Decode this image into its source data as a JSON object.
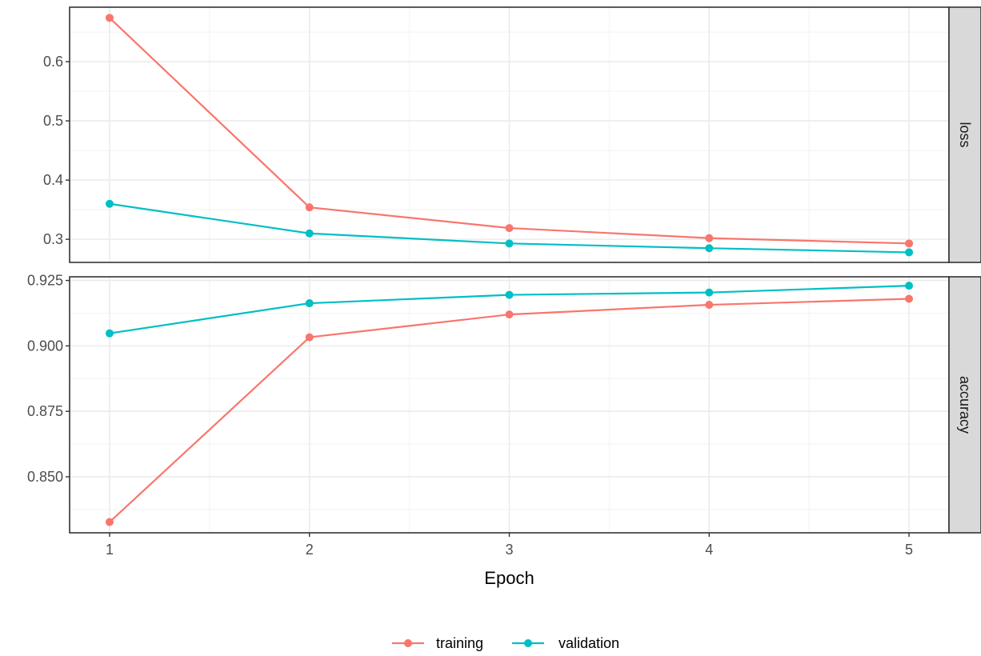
{
  "chart_data": {
    "type": "line",
    "xlabel": "Epoch",
    "x": [
      1,
      2,
      3,
      4,
      5
    ],
    "x_ticks": [
      "1",
      "2",
      "3",
      "4",
      "5"
    ],
    "xlim": [
      0.8,
      5.2
    ],
    "grid": true,
    "legend_position": "bottom",
    "legend": [
      {
        "name": "training",
        "color": "#F8766D"
      },
      {
        "name": "validation",
        "color": "#00BFC4"
      }
    ],
    "panels": [
      {
        "strip": "loss",
        "ylim": [
          0.261,
          0.692
        ],
        "y_ticks": [
          0.3,
          0.4,
          0.5,
          0.6
        ],
        "y_tick_labels": [
          "0.3",
          "0.4",
          "0.5",
          "0.6"
        ],
        "series": [
          {
            "name": "training",
            "values": [
              0.674,
              0.354,
              0.319,
              0.302,
              0.293
            ]
          },
          {
            "name": "validation",
            "values": [
              0.36,
              0.31,
              0.293,
              0.285,
              0.278
            ]
          }
        ]
      },
      {
        "strip": "accuracy",
        "ylim": [
          0.8286,
          0.9264
        ],
        "y_ticks": [
          0.85,
          0.875,
          0.9,
          0.925
        ],
        "y_tick_labels": [
          "0.850",
          "0.875",
          "0.900",
          "0.925"
        ],
        "series": [
          {
            "name": "training",
            "values": [
              0.8327,
              0.9033,
              0.912,
              0.9157,
              0.918
            ]
          },
          {
            "name": "validation",
            "values": [
              0.9048,
              0.9163,
              0.9195,
              0.9204,
              0.923
            ]
          }
        ]
      }
    ]
  }
}
